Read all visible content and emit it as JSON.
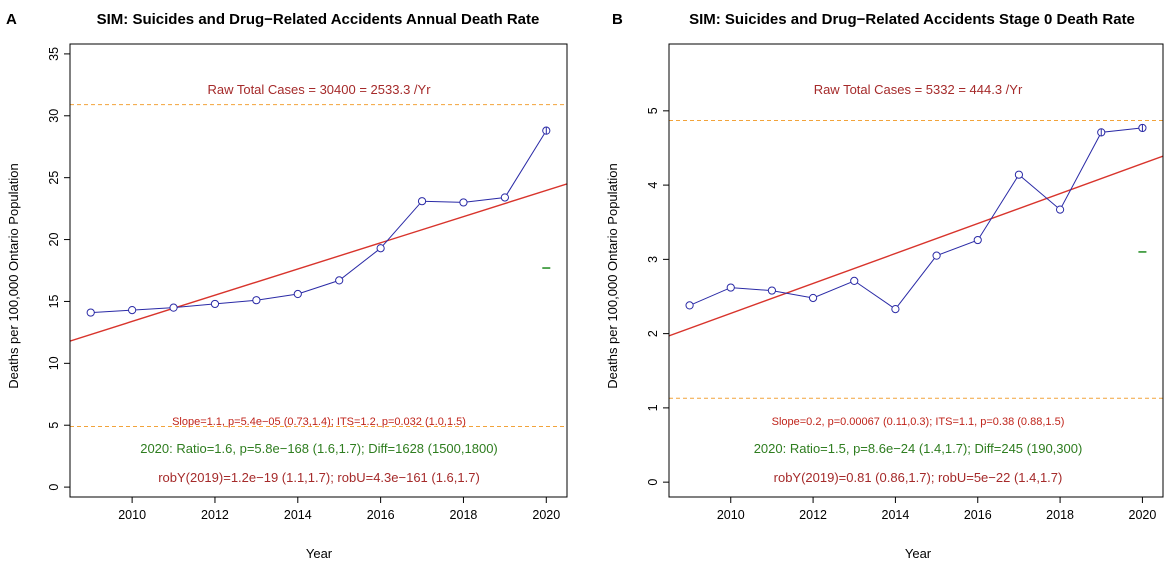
{
  "chart_data": [
    {
      "type": "line",
      "panel_letter": "A",
      "title": "SIM: Suicides and Drug−Related Accidents Annual Death Rate",
      "xlabel": "Year",
      "ylabel": "Deaths per 100,000 Ontario Population",
      "xlim": [
        2008.5,
        2020.5
      ],
      "ylim": [
        -0.8,
        35.8
      ],
      "x_ticks": [
        2010,
        2012,
        2014,
        2016,
        2018,
        2020
      ],
      "y_ticks": [
        0,
        5,
        10,
        15,
        20,
        25,
        30,
        35
      ],
      "x": [
        2009,
        2010,
        2011,
        2012,
        2013,
        2014,
        2015,
        2016,
        2017,
        2018,
        2019,
        2020
      ],
      "values": [
        14.1,
        14.3,
        14.5,
        14.8,
        15.1,
        15.6,
        16.7,
        19.3,
        23.1,
        23.0,
        23.4,
        28.8
      ],
      "error_bar_points": [
        2020
      ],
      "trend_line": {
        "x": [
          2008.5,
          2020.5
        ],
        "y": [
          11.8,
          24.5
        ]
      },
      "reference_lines": [
        30.9,
        4.9
      ],
      "green_marker": {
        "x": 2020,
        "y": 17.7
      },
      "annotations": {
        "raw_total": "Raw Total Cases = 30400 = 2533.3 /Yr",
        "slope": "Slope=1.1, p=5.4e−05 (0.73,1.4);  ITS=1.2, p=0.032 (1.0,1.5)",
        "ratio": "2020:  Ratio=1.6, p=5.8e−168 (1.6,1.7);  Diff=1628 (1500,1800)",
        "rob": "robY(2019)=1.2e−19 (1.1,1.7); robU=4.3e−161 (1.6,1.7)"
      },
      "colors": {
        "series": "#2a2aa6",
        "trend": "#d8342c",
        "reference": "#f2a33a",
        "ratio_text": "#2e7d1f",
        "rob_text": "#a52a2a"
      }
    },
    {
      "type": "line",
      "panel_letter": "B",
      "title": "SIM: Suicides and Drug−Related Accidents Stage 0 Death Rate",
      "xlabel": "Year",
      "ylabel": "Deaths per 100,000 Ontario Population",
      "xlim": [
        2008.5,
        2020.5
      ],
      "ylim": [
        -0.2,
        5.9
      ],
      "x_ticks": [
        2010,
        2012,
        2014,
        2016,
        2018,
        2020
      ],
      "y_ticks": [
        0,
        1,
        2,
        3,
        4,
        5
      ],
      "x": [
        2009,
        2010,
        2011,
        2012,
        2013,
        2014,
        2015,
        2016,
        2017,
        2018,
        2019,
        2020
      ],
      "values": [
        2.38,
        2.62,
        2.58,
        2.48,
        2.71,
        2.33,
        3.05,
        3.26,
        4.14,
        3.67,
        4.71,
        4.77
      ],
      "error_bar_points": [
        2019,
        2020
      ],
      "trend_line": {
        "x": [
          2008.5,
          2020.5
        ],
        "y": [
          1.97,
          4.39
        ]
      },
      "reference_lines": [
        4.87,
        1.13
      ],
      "green_marker": {
        "x": 2020,
        "y": 3.1
      },
      "annotations": {
        "raw_total": "Raw Total Cases = 5332 = 444.3 /Yr",
        "slope": "Slope=0.2, p=0.00067 (0.11,0.3);  ITS=1.1, p=0.38 (0.88,1.5)",
        "ratio": "2020:  Ratio=1.5, p=8.6e−24 (1.4,1.7);  Diff=245 (190,300)",
        "rob": "robY(2019)=0.81 (0.86,1.7); robU=5e−22 (1.4,1.7)"
      },
      "colors": {
        "series": "#2a2aa6",
        "trend": "#d8342c",
        "reference": "#f2a33a",
        "ratio_text": "#2e7d1f",
        "rob_text": "#a52a2a"
      }
    }
  ]
}
